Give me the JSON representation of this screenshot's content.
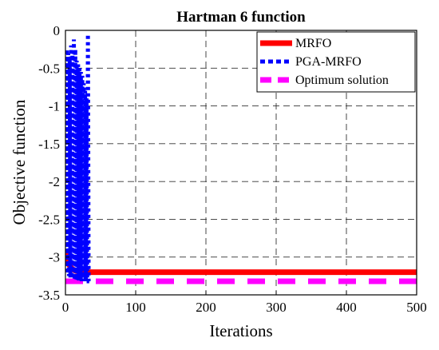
{
  "chart_data": {
    "type": "line",
    "title": "Hartman 6 function",
    "xlabel": "Iterations",
    "ylabel": "Objective function",
    "xlim": [
      0,
      500
    ],
    "ylim": [
      -3.5,
      0
    ],
    "xticks": [
      0,
      100,
      200,
      300,
      400,
      500
    ],
    "yticks": [
      0,
      -0.5,
      -1,
      -1.5,
      -2,
      -2.5,
      -3,
      -3.5
    ],
    "xtick_labels": [
      "0",
      "100",
      "200",
      "300",
      "400",
      "500"
    ],
    "ytick_labels": [
      "0",
      "-0.5",
      "-1",
      "-1.5",
      "-2",
      "-2.5",
      "-3",
      "-3.5"
    ],
    "grid": true,
    "legend_position": "top-right",
    "series": [
      {
        "name": "MRFO",
        "color": "#ff0000",
        "style": "solid",
        "x": [
          1,
          3,
          5,
          8,
          10,
          14,
          18,
          22,
          26,
          30,
          35,
          50,
          100,
          200,
          300,
          400,
          500
        ],
        "y": [
          -2.95,
          -3.05,
          -3.1,
          -3.14,
          -3.16,
          -3.18,
          -3.19,
          -3.2,
          -3.2,
          -3.2,
          -3.2,
          -3.2,
          -3.2,
          -3.2,
          -3.2,
          -3.2,
          -3.2
        ]
      },
      {
        "name": "PGA-MRFO",
        "color": "#0000ff",
        "style": "dotted",
        "x": [
          1,
          2,
          3,
          4,
          5,
          6,
          7,
          8,
          9,
          10,
          11,
          12,
          13,
          14,
          15,
          16,
          17,
          18,
          19,
          20,
          21,
          22,
          23,
          24,
          25,
          26,
          27,
          28,
          29,
          30,
          31,
          32,
          33,
          34
        ],
        "y": [
          -3.1,
          -0.25,
          -3.22,
          -0.3,
          -3.25,
          -0.35,
          -3.27,
          -0.2,
          -3.28,
          -0.28,
          -3.29,
          -0.12,
          -3.3,
          -0.25,
          -3.3,
          -0.4,
          -3.31,
          -0.45,
          -3.31,
          -0.5,
          -3.31,
          -0.55,
          -3.32,
          -0.6,
          -3.32,
          -0.7,
          -3.32,
          -0.8,
          -3.32,
          -0.9,
          -3.32,
          -0.05,
          -3.32,
          -3.32
        ]
      },
      {
        "name": "Optimum solution",
        "color": "#ff00ff",
        "style": "dashed",
        "x": [
          0,
          500
        ],
        "y": [
          -3.32,
          -3.32
        ]
      }
    ]
  }
}
